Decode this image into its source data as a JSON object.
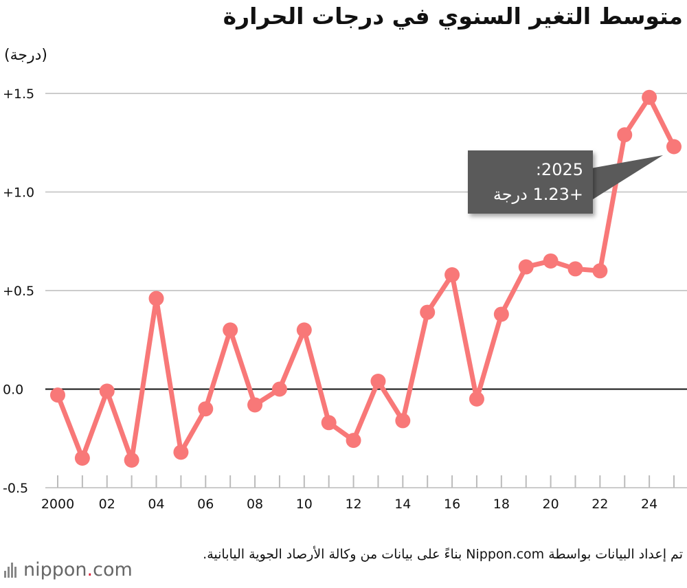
{
  "chart_data": {
    "type": "line",
    "title": "متوسط التغير السنوي في درجات الحرارة",
    "ylabel": "(درجة)",
    "xlabel": "",
    "ylim": [
      -0.5,
      1.5
    ],
    "xlim": [
      2000,
      2025
    ],
    "grid": true,
    "y_ticks": [
      "+1.5",
      "+1.0",
      "+0.5",
      "0.0",
      "-0.5"
    ],
    "y_tick_values": [
      1.5,
      1.0,
      0.5,
      0.0,
      -0.5
    ],
    "x_ticks": [
      "2000",
      "02",
      "04",
      "06",
      "08",
      "10",
      "12",
      "14",
      "16",
      "18",
      "20",
      "22",
      "24"
    ],
    "x_tick_values": [
      2000,
      2002,
      2004,
      2006,
      2008,
      2010,
      2012,
      2014,
      2016,
      2018,
      2020,
      2022,
      2024
    ],
    "series": [
      {
        "color": "#f87878",
        "x": [
          2000,
          2001,
          2002,
          2003,
          2004,
          2005,
          2006,
          2007,
          2008,
          2009,
          2010,
          2011,
          2012,
          2013,
          2014,
          2015,
          2016,
          2017,
          2018,
          2019,
          2020,
          2021,
          2022,
          2023,
          2024,
          2025
        ],
        "values": [
          -0.03,
          -0.35,
          -0.01,
          -0.36,
          0.46,
          -0.32,
          -0.1,
          0.3,
          -0.08,
          0.0,
          0.3,
          -0.17,
          -0.26,
          0.04,
          -0.16,
          0.39,
          0.58,
          -0.05,
          0.38,
          0.62,
          0.65,
          0.61,
          0.6,
          1.29,
          1.48,
          1.23
        ]
      }
    ],
    "annotation": {
      "line1": "2025:",
      "line2": "‏+1.23 درجة"
    }
  },
  "source_note": "تم إعداد البيانات بواسطة Nippon.com بناءً على بيانات من وكالة الأرصاد الجوية اليابانية.",
  "logo": {
    "text_main": "nippon",
    "text_dot": ".",
    "text_end": "com"
  },
  "colors": {
    "series": "#f87878",
    "callout_bg": "#5a5a5a",
    "grid": "#cccccc",
    "zero_line": "#111111"
  }
}
